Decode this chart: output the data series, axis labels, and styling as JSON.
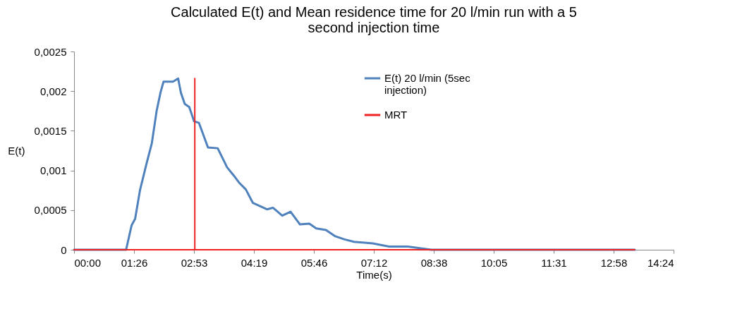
{
  "chart_data": {
    "type": "line",
    "title": "Calculated E(t) and Mean residence time for 20 l/min run with a 5 second injection time",
    "xlabel": "Time(s)",
    "ylabel": "E(t)",
    "xlim": [
      0,
      864
    ],
    "xticks": [
      {
        "value": 0,
        "label": "00:00"
      },
      {
        "value": 86.4,
        "label": "01:26"
      },
      {
        "value": 172.8,
        "label": "02:53"
      },
      {
        "value": 259.2,
        "label": "04:19"
      },
      {
        "value": 345.6,
        "label": "05:46"
      },
      {
        "value": 432,
        "label": "07:12"
      },
      {
        "value": 518.4,
        "label": "08:38"
      },
      {
        "value": 604.8,
        "label": "10:05"
      },
      {
        "value": 691.2,
        "label": "11:31"
      },
      {
        "value": 777.6,
        "label": "12:58"
      },
      {
        "value": 864,
        "label": "14:24"
      }
    ],
    "ylim": [
      0,
      0.0025
    ],
    "yticks": [
      0,
      {
        "value": 0.0005,
        "label": "0,0005"
      },
      {
        "value": 0.001,
        "label": "0,001"
      },
      {
        "value": 0.0015,
        "label": "0,0015"
      },
      {
        "value": 0.002,
        "label": "0,002"
      },
      {
        "value": 0.0025,
        "label": "0,0025"
      }
    ],
    "grid": false,
    "legend": "top right",
    "marker": "none",
    "line_style": "solid",
    "series": [
      {
        "name": "E(t) 20 l/min (5sec injection)",
        "color": "#4f81bd",
        "x": [
          0,
          75,
          83,
          88,
          95,
          104,
          112,
          119,
          124.5,
          129,
          142.6,
          150,
          154,
          159.5,
          166,
          173,
          180,
          193,
          207,
          220.5,
          230.7,
          237.5,
          247.6,
          257.8,
          278,
          286.6,
          300,
          312,
          325.6,
          339,
          349,
          363,
          376.5,
          390,
          403.5,
          430.6,
          454,
          481,
          515,
          808
        ],
        "values": [
          0,
          0,
          0.00031,
          0.00039,
          0.00075,
          0.00107,
          0.00134,
          0.00175,
          0.00198,
          0.00212,
          0.00212,
          0.00216,
          0.00198,
          0.00184,
          0.0018,
          0.00162,
          0.0016,
          0.00129,
          0.00128,
          0.00104,
          0.00093,
          0.00085,
          0.00076,
          0.00059,
          0.00051,
          0.00053,
          0.00043,
          0.00048,
          0.00032,
          0.00033,
          0.00027,
          0.00025,
          0.00017,
          0.00013,
          0.0001,
          8e-05,
          4e-05,
          4e-05,
          0,
          0
        ]
      },
      {
        "name": "MRT",
        "color": "#ee2222",
        "x": [
          0,
          174,
          174,
          174,
          808
        ],
        "values": [
          0,
          0,
          0.00216,
          0,
          0
        ]
      }
    ]
  }
}
